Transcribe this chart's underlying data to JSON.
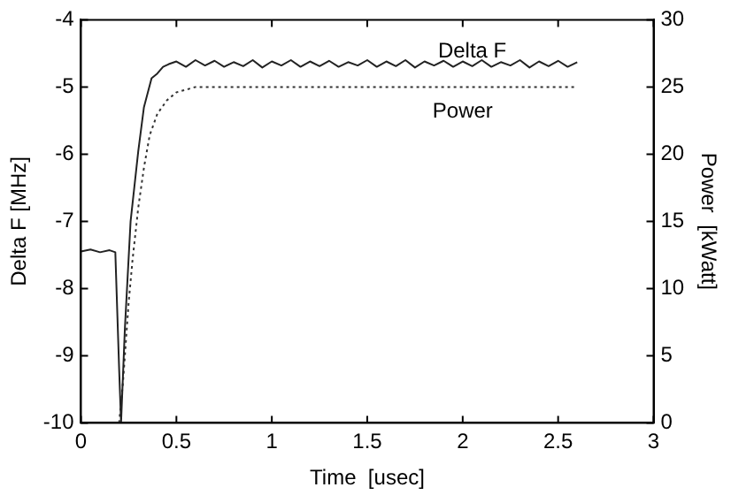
{
  "chart_data": {
    "type": "line",
    "xlabel": "Time  [usec]",
    "ylabel": "Delta F [MHz]",
    "y2label": "Power  [kWatt]",
    "xlim": [
      0,
      3
    ],
    "xticks": [
      0,
      0.5,
      1,
      1.5,
      2,
      2.5,
      3
    ],
    "ylim": [
      -10,
      -4
    ],
    "yticks": [
      -10,
      -9,
      -8,
      -7,
      -6,
      -5,
      -4
    ],
    "y2lim": [
      0,
      30
    ],
    "y2ticks": [
      0,
      5,
      10,
      15,
      20,
      25,
      30
    ],
    "grid": false,
    "legend": false,
    "marker": "none",
    "series": [
      {
        "name": "Delta F",
        "color": "#222222",
        "line_style": "solid",
        "x": [
          0,
          0.05,
          0.1,
          0.15,
          0.18,
          0.2,
          0.21,
          0.23,
          0.26,
          0.3,
          0.33,
          0.37,
          0.4,
          0.43,
          0.46,
          0.5,
          0.55,
          0.6,
          0.65,
          0.7,
          0.75,
          0.8,
          0.85,
          0.9,
          0.95,
          1,
          1.05,
          1.1,
          1.15,
          1.2,
          1.25,
          1.3,
          1.35,
          1.4,
          1.45,
          1.5,
          1.55,
          1.6,
          1.65,
          1.7,
          1.75,
          1.8,
          1.85,
          1.9,
          1.95,
          2,
          2.05,
          2.1,
          2.15,
          2.2,
          2.25,
          2.3,
          2.35,
          2.4,
          2.45,
          2.5,
          2.55,
          2.6
        ],
        "values": [
          -7.45,
          -7.42,
          -7.46,
          -7.43,
          -7.46,
          -9.2,
          -10,
          -8.6,
          -7.0,
          -5.96,
          -5.3,
          -4.87,
          -4.8,
          -4.7,
          -4.66,
          -4.62,
          -4.7,
          -4.6,
          -4.68,
          -4.61,
          -4.7,
          -4.63,
          -4.69,
          -4.6,
          -4.71,
          -4.62,
          -4.68,
          -4.6,
          -4.7,
          -4.62,
          -4.69,
          -4.61,
          -4.7,
          -4.63,
          -4.68,
          -4.6,
          -4.7,
          -4.62,
          -4.69,
          -4.6,
          -4.71,
          -4.62,
          -4.68,
          -4.61,
          -4.7,
          -4.62,
          -4.69,
          -4.6,
          -4.7,
          -4.63,
          -4.68,
          -4.6,
          -4.71,
          -4.62,
          -4.69,
          -4.61,
          -4.7,
          -4.63
        ]
      },
      {
        "name": "Power",
        "color": "#333333",
        "axis": "y2",
        "line_style": "dotted",
        "x": [
          0.2,
          0.22,
          0.25,
          0.27,
          0.3,
          0.33,
          0.36,
          0.4,
          0.45,
          0.5,
          0.6,
          0.8,
          1,
          1.5,
          2,
          2.6
        ],
        "values": [
          0,
          3,
          9,
          12.1,
          16,
          19,
          21.4,
          23,
          24,
          24.6,
          25,
          25,
          25,
          25,
          25,
          25
        ]
      }
    ]
  }
}
